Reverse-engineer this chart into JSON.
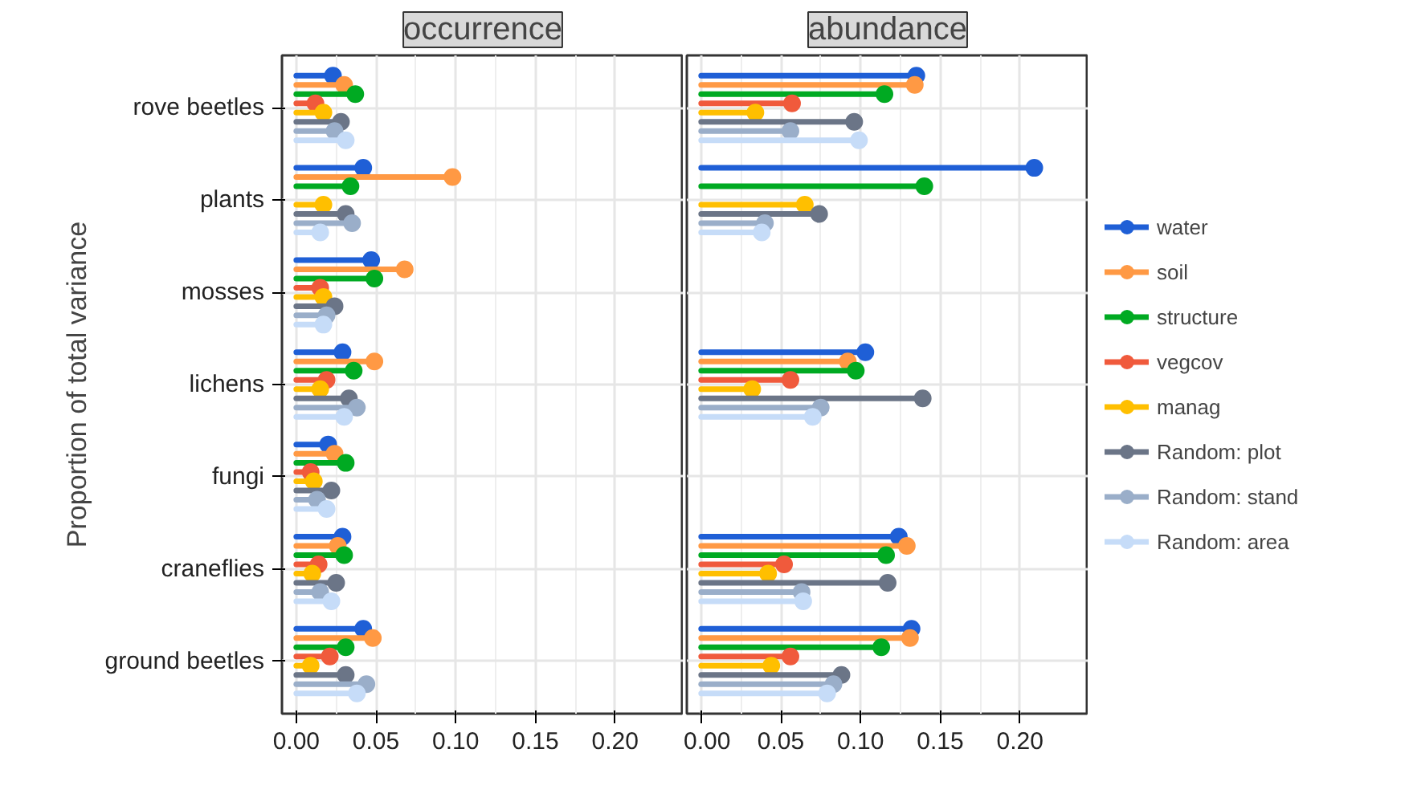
{
  "chart_data": [
    {
      "type": "lollipop",
      "title": "occurrence",
      "ylabel": "Proportion of total variance",
      "orientation": "horizontal",
      "grid": true,
      "marker": "circle",
      "legend": false,
      "categories": [
        "rove beetles",
        "plants",
        "mosses",
        "lichens",
        "fungi",
        "craneflies",
        "ground beetles"
      ],
      "xlim": [
        -0.009,
        0.243
      ],
      "xticks": [
        {
          "value": 0,
          "label": "0.00"
        },
        {
          "value": 0.05,
          "label": "0.05"
        },
        {
          "value": 0.1,
          "label": "0.10"
        },
        {
          "value": 0.15,
          "label": "0.15"
        },
        {
          "value": 0.2,
          "label": "0.20"
        }
      ],
      "series": [
        {
          "color": "#1f5fd6",
          "values": [
            0.023,
            0.042,
            0.047,
            0.029,
            0.02,
            0.029,
            0.042
          ]
        },
        {
          "color": "#ff9944",
          "values": [
            0.03,
            0.098,
            0.068,
            0.049,
            0.024,
            0.026,
            0.048
          ]
        },
        {
          "color": "#00aa22",
          "values": [
            0.037,
            0.034,
            0.049,
            0.036,
            0.031,
            0.03,
            0.031
          ]
        },
        {
          "color": "#f05a3c",
          "values": [
            0.012,
            null,
            0.015,
            0.019,
            0.009,
            0.014,
            0.021
          ]
        },
        {
          "color": "#ffbf00",
          "values": [
            0.017,
            0.017,
            0.017,
            0.015,
            0.011,
            0.01,
            0.009
          ]
        },
        {
          "color": "#6b7587",
          "values": [
            0.028,
            0.031,
            0.024,
            0.033,
            0.022,
            0.025,
            0.031
          ]
        },
        {
          "color": "#9aaec9",
          "values": [
            0.024,
            0.035,
            0.019,
            0.038,
            0.013,
            0.015,
            0.044
          ]
        },
        {
          "color": "#c6dcf8",
          "values": [
            0.031,
            0.015,
            0.017,
            0.03,
            0.019,
            0.022,
            0.038
          ]
        }
      ]
    },
    {
      "type": "lollipop",
      "title": "abundance",
      "orientation": "horizontal",
      "grid": true,
      "marker": "circle",
      "legend": "right",
      "tick_labels": "x",
      "categories": [
        null,
        null,
        null,
        null,
        null,
        null,
        null
      ],
      "xlim": [
        -0.009,
        0.243
      ],
      "xticks": [
        {
          "value": 0,
          "label": "0.00"
        },
        {
          "value": 0.05,
          "label": "0.05"
        },
        {
          "value": 0.1,
          "label": "0.10"
        },
        {
          "value": 0.15,
          "label": "0.15"
        },
        {
          "value": 0.2,
          "label": "0.20"
        }
      ],
      "series": [
        {
          "name": "water",
          "color": "#1f5fd6",
          "values": [
            0.135,
            0.209,
            null,
            0.103,
            null,
            0.124,
            0.132
          ]
        },
        {
          "name": "soil",
          "color": "#ff9944",
          "values": [
            0.134,
            null,
            null,
            0.092,
            null,
            0.129,
            0.131
          ]
        },
        {
          "name": "structure",
          "color": "#00aa22",
          "values": [
            0.115,
            0.14,
            null,
            0.097,
            null,
            0.116,
            0.113
          ]
        },
        {
          "name": "vegcov",
          "color": "#f05a3c",
          "values": [
            0.057,
            null,
            null,
            0.056,
            null,
            0.052,
            0.056
          ]
        },
        {
          "name": "manag",
          "color": "#ffbf00",
          "values": [
            0.034,
            0.065,
            null,
            0.032,
            null,
            0.042,
            0.044
          ]
        },
        {
          "name": "Random: plot",
          "color": "#6b7587",
          "values": [
            0.096,
            0.074,
            null,
            0.139,
            null,
            0.117,
            0.088
          ]
        },
        {
          "name": "Random: stand",
          "color": "#9aaec9",
          "values": [
            0.056,
            0.04,
            null,
            0.075,
            null,
            0.063,
            0.083
          ]
        },
        {
          "name": "Random: area",
          "color": "#c6dcf8",
          "values": [
            0.099,
            0.038,
            null,
            0.07,
            null,
            0.064,
            0.079
          ]
        }
      ]
    }
  ]
}
